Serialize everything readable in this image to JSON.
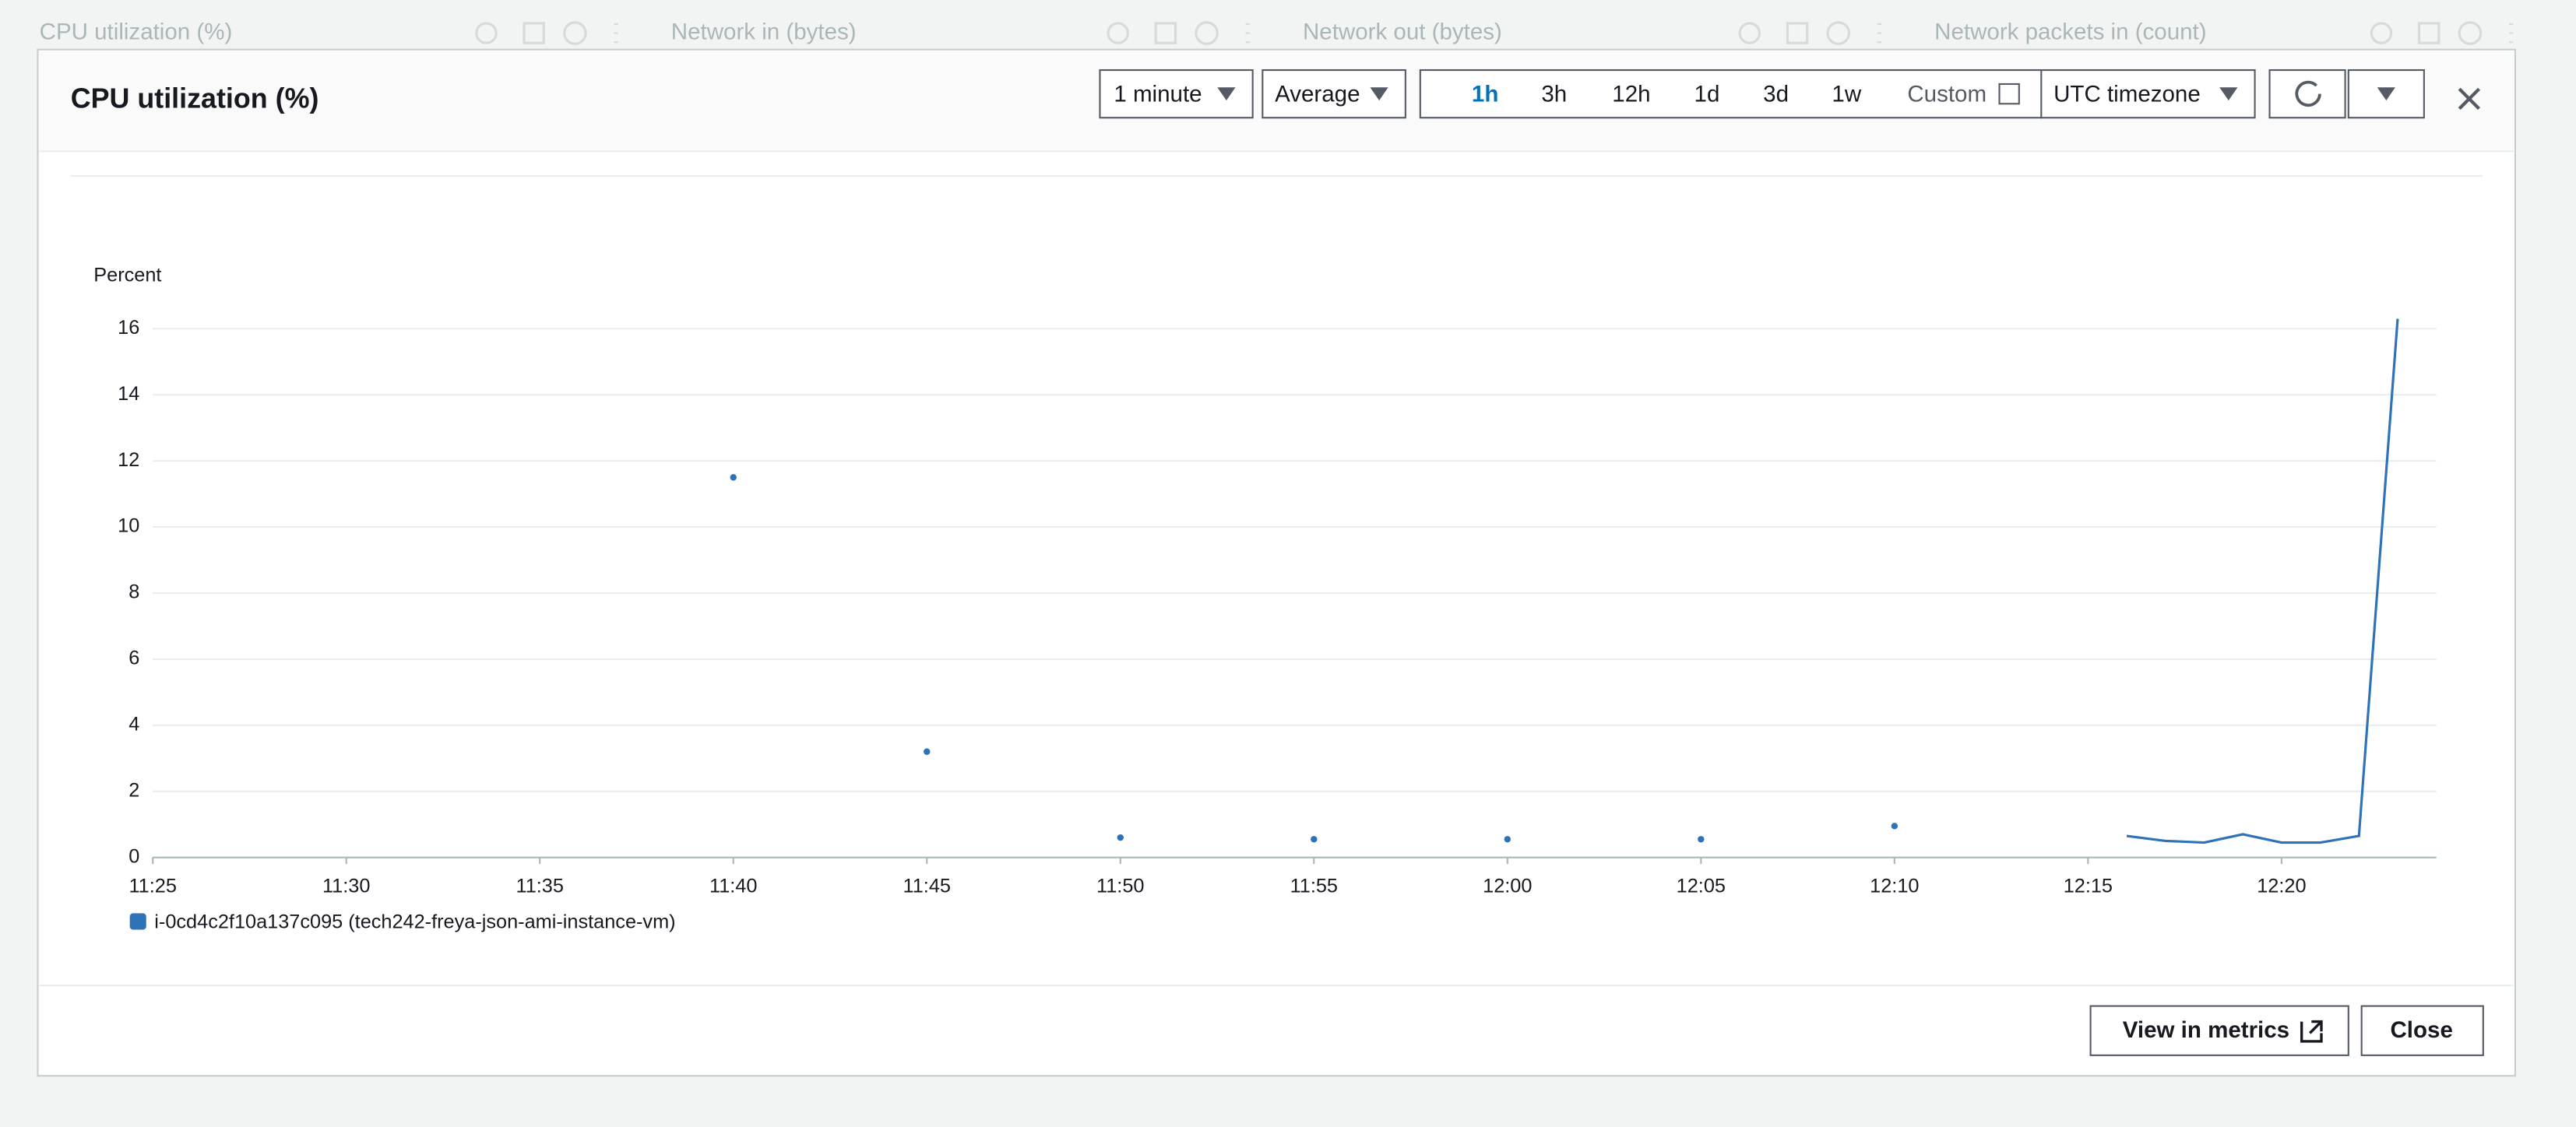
{
  "dashboard": {
    "widgets": [
      "CPU utilization (%)",
      "Network in (bytes)",
      "Network out (bytes)",
      "Network packets in (count)"
    ]
  },
  "modal": {
    "title": "CPU utilization (%)",
    "period": "1 minute",
    "statistic": "Average",
    "ranges": [
      "1h",
      "3h",
      "12h",
      "1d",
      "3d",
      "1w"
    ],
    "custom": "Custom",
    "timezone": "UTC timezone",
    "buttons": [
      "View in metrics",
      "Close"
    ]
  },
  "chart_data": {
    "type": "line",
    "y_label": "Percent",
    "x": [
      "11:40",
      "11:41",
      "11:42",
      "11:43",
      "11:44",
      "11:45",
      "11:46",
      "11:47",
      "11:48",
      "11:49",
      "11:50",
      "11:51",
      "11:52",
      "11:53",
      "11:54",
      "11:55",
      "11:56",
      "11:57",
      "11:58",
      "11:59",
      "12:00",
      "12:01",
      "12:02",
      "12:03",
      "12:04",
      "12:05",
      "12:06",
      "12:07",
      "12:08",
      "12:09",
      "12:10",
      "12:11",
      "12:12",
      "12:13",
      "12:14",
      "12:15",
      "12:16",
      "12:17",
      "12:18",
      "12:19",
      "12:20",
      "12:21",
      "12:22",
      "12:23"
    ],
    "series": [
      {
        "name": "i-0cd4c2f10a137c095 (tech242-freya-json-ami-instance-vm)",
        "color": "#2e73b8",
        "values": [
          11.5,
          null,
          null,
          null,
          null,
          3.2,
          null,
          null,
          null,
          null,
          0.6,
          null,
          null,
          null,
          null,
          0.55,
          null,
          null,
          null,
          null,
          0.55,
          null,
          null,
          null,
          null,
          0.55,
          null,
          null,
          null,
          null,
          0.95,
          null,
          null,
          null,
          null,
          null,
          0.65,
          0.5,
          0.45,
          0.7,
          0.45,
          0.45,
          0.65,
          16.3
        ]
      }
    ],
    "xlim": [
      "11:25",
      "12:24"
    ],
    "xticks": [
      "11:25",
      "11:30",
      "11:35",
      "11:40",
      "11:45",
      "11:50",
      "11:55",
      "12:00",
      "12:05",
      "12:10",
      "12:15",
      "12:20"
    ],
    "ylim": [
      0,
      16.6
    ],
    "yticks": [
      0,
      2,
      4,
      6,
      8,
      10,
      12,
      14,
      16
    ],
    "grid": true
  }
}
